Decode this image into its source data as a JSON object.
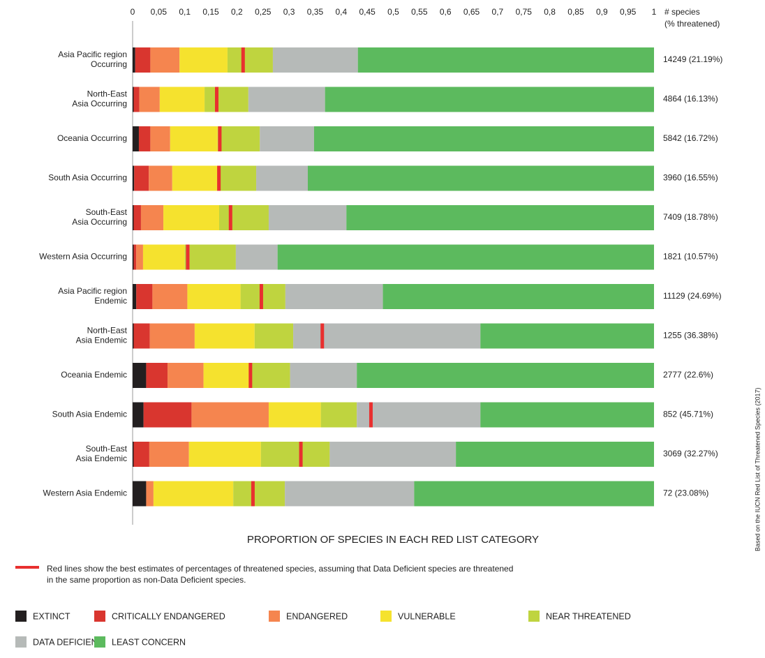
{
  "chart_data": {
    "type": "bar",
    "orientation": "horizontal",
    "stacked": true,
    "title": "PROPORTION OF SPECIES IN EACH RED LIST CATEGORY",
    "categories": [
      [
        "Asia Pacific region",
        "Occurring"
      ],
      [
        "North-East",
        "Asia Occurring"
      ],
      [
        "Oceania Occurring"
      ],
      [
        "South Asia Occurring"
      ],
      [
        "South-East",
        "Asia Occurring"
      ],
      [
        "Western Asia Occurring"
      ],
      [
        "Asia Pacific region",
        "Endemic"
      ],
      [
        "North-East",
        "Asia Endemic"
      ],
      [
        "Oceania Endemic"
      ],
      [
        "South Asia Endemic"
      ],
      [
        "South-East",
        "Asia Endemic"
      ],
      [
        "Western Asia Endemic"
      ]
    ],
    "series": [
      {
        "name": "EXTINCT",
        "color": "#231f20",
        "values": [
          0.005,
          0.002,
          0.012,
          0.003,
          0.002,
          0.002,
          0.007,
          0.002,
          0.026,
          0.021,
          0.002,
          0.026
        ]
      },
      {
        "name": "CRITICALLY ENDANGERED",
        "color": "#d9362f",
        "values": [
          0.029,
          0.011,
          0.022,
          0.028,
          0.014,
          0.005,
          0.031,
          0.031,
          0.041,
          0.092,
          0.03,
          0
        ]
      },
      {
        "name": "ENDANGERED",
        "color": "#f5854f",
        "values": [
          0.056,
          0.039,
          0.038,
          0.045,
          0.043,
          0.013,
          0.067,
          0.086,
          0.069,
          0.148,
          0.076,
          0.014
        ]
      },
      {
        "name": "VULNERABLE",
        "color": "#f5e22e",
        "values": [
          0.092,
          0.086,
          0.091,
          0.086,
          0.107,
          0.08,
          0.102,
          0.115,
          0.09,
          0.1,
          0.138,
          0.153
        ]
      },
      {
        "name": "NEAR THREATENED",
        "color": "#bfd43f",
        "values": [
          0.087,
          0.084,
          0.081,
          0.075,
          0.095,
          0.098,
          0.086,
          0.074,
          0.076,
          0.069,
          0.132,
          0.099
        ]
      },
      {
        "name": "DATA DEFICIENT",
        "color": "#b6bab8",
        "values": [
          0.163,
          0.147,
          0.104,
          0.099,
          0.149,
          0.08,
          0.187,
          0.359,
          0.128,
          0.237,
          0.242,
          0.248
        ]
      },
      {
        "name": "LEAST CONCERN",
        "color": "#5cba5e",
        "values": [
          0.568,
          0.631,
          0.652,
          0.664,
          0.59,
          0.722,
          0.52,
          0.333,
          0.57,
          0.333,
          0.38,
          0.46
        ]
      }
    ],
    "best_estimate": [
      0.2119,
      0.1613,
      0.1672,
      0.1655,
      0.1878,
      0.1057,
      0.2469,
      0.3638,
      0.226,
      0.4571,
      0.3227,
      0.2308
    ],
    "best_estimate_color": "#e8302f",
    "right_header": [
      "# species",
      "(% threatened)"
    ],
    "right_labels": [
      "14249 (21.19%)",
      "4864 (16.13%)",
      "5842 (16.72%)",
      "3960 (16.55%)",
      "7409 (18.78%)",
      "1821 (10.57%)",
      "11129 (24.69%)",
      "1255 (36.38%)",
      "2777 (22.6%)",
      "852 (45.71%)",
      "3069 (32.27%)",
      "72 (23.08%)"
    ],
    "xlim": [
      0,
      1
    ],
    "xticks": [
      0,
      {
        "value": 0.05,
        "label": "0,05"
      },
      {
        "value": 0.1,
        "label": "0,1"
      },
      {
        "value": 0.15,
        "label": "0,15"
      },
      {
        "value": 0.2,
        "label": "0,2"
      },
      {
        "value": 0.25,
        "label": "0,25"
      },
      {
        "value": 0.3,
        "label": "0,3"
      },
      {
        "value": 0.35,
        "label": "0,35"
      },
      {
        "value": 0.4,
        "label": "0,4"
      },
      {
        "value": 0.45,
        "label": "0,45"
      },
      {
        "value": 0.5,
        "label": "0,5"
      },
      {
        "value": 0.55,
        "label": "0,55"
      },
      {
        "value": 0.6,
        "label": "0,6"
      },
      {
        "value": 0.65,
        "label": "0,65"
      },
      {
        "value": 0.7,
        "label": "0,7"
      },
      {
        "value": 0.75,
        "label": "0,75"
      },
      {
        "value": 0.8,
        "label": "0,8"
      },
      {
        "value": 0.85,
        "label": "0,85"
      },
      {
        "value": 0.9,
        "label": "0,9"
      },
      {
        "value": 0.95,
        "label": "0,95"
      },
      1
    ],
    "note": [
      "Red lines show the best estimates of percentages of threatened species, assuming that Data Deficient species are threatened",
      "in the same proportion as non-Data Deficient species."
    ],
    "source": "Based on the IUCN Red List of Threatened Species (2017)"
  }
}
